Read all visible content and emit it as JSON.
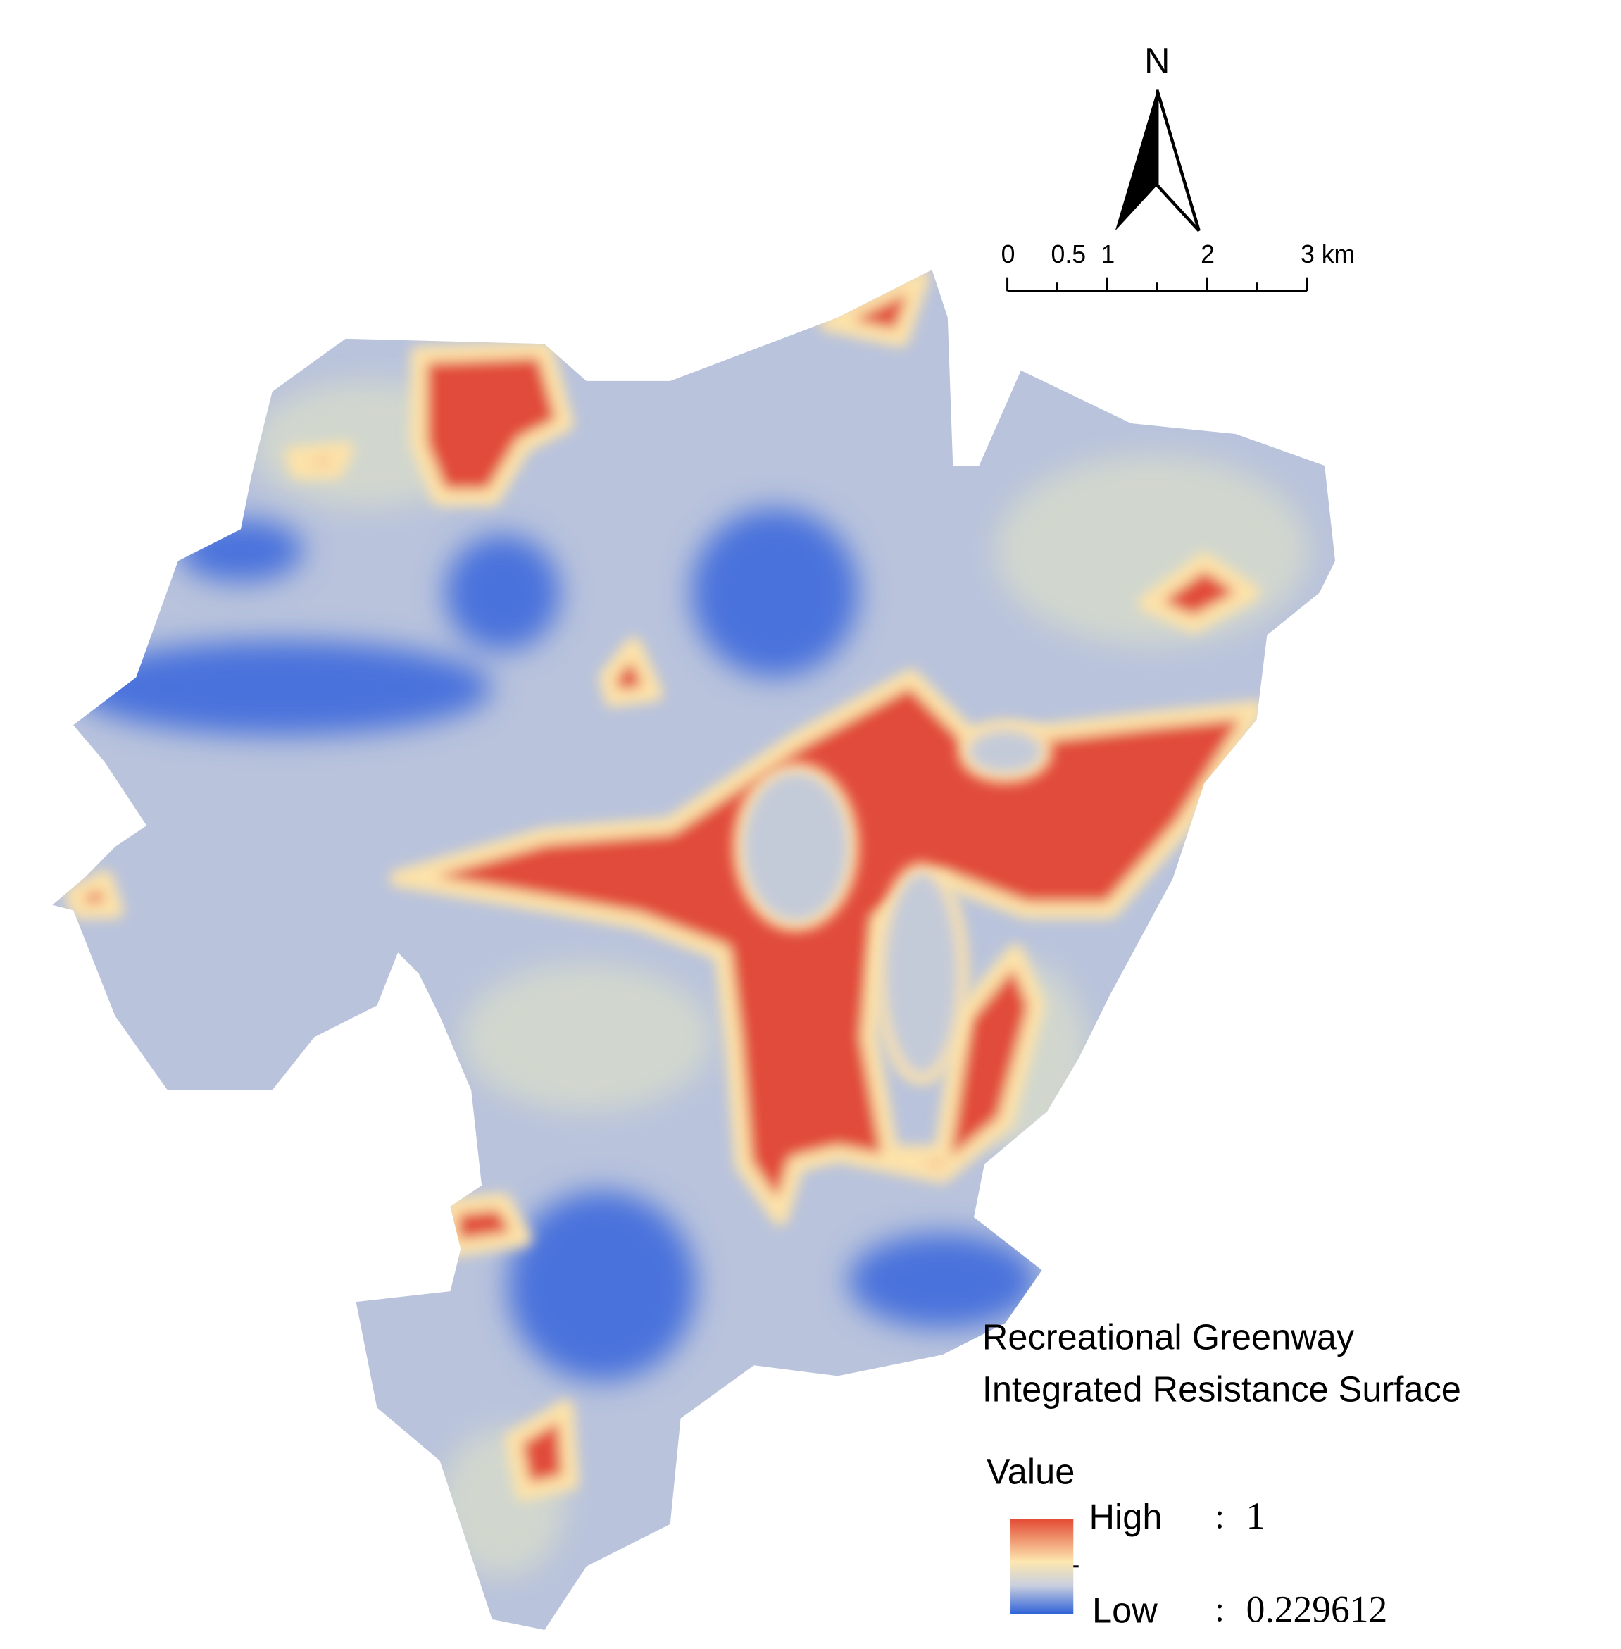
{
  "north": "N",
  "scale_bar": {
    "ticks": [
      0,
      0.5,
      1,
      2,
      {
        "value": 3,
        "label": "3 km"
      }
    ]
  },
  "legend": {
    "title": [
      "Recreational Greenway",
      "Integrated Resistance Surface"
    ],
    "field": "Value",
    "high": {
      "label": "High",
      "separator": ":",
      "value": 1
    },
    "low": {
      "label": "Low",
      "separator": ":",
      "value": 0.229612
    }
  }
}
